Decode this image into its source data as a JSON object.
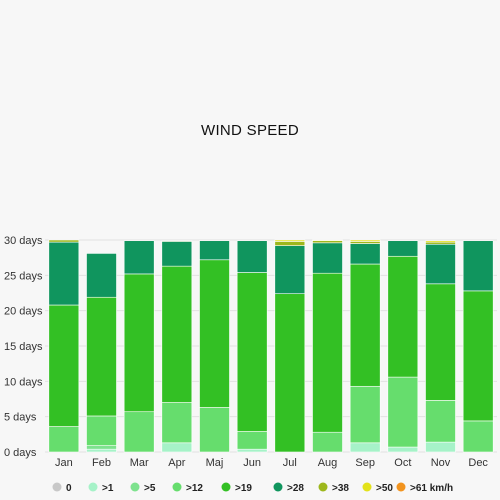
{
  "chart_data": {
    "type": "bar",
    "stacked": true,
    "title": "WIND SPEED",
    "xlabel": "",
    "ylabel": "",
    "y_unit": "days",
    "ylim": [
      0,
      30
    ],
    "yticks": [
      0,
      5,
      10,
      15,
      20,
      25,
      30
    ],
    "ytick_labels": [
      "0 days",
      "5 days",
      "10 days",
      "15 days",
      "20 days",
      "25 days",
      "30 days"
    ],
    "grid": true,
    "legend_position": "bottom",
    "categories": [
      "Jan",
      "Feb",
      "Mar",
      "Apr",
      "Maj",
      "Jun",
      "Jul",
      "Aug",
      "Sep",
      "Oct",
      "Nov",
      "Dec"
    ],
    "series": [
      {
        "name": "0",
        "color": "#c8c8c8",
        "values": [
          0,
          0,
          0,
          0,
          0,
          0,
          0,
          0,
          0,
          0,
          0,
          0
        ]
      },
      {
        "name": ">1",
        "color": "#a6f2c8",
        "values": [
          0,
          0.4,
          0,
          1.3,
          0,
          0.4,
          0,
          0,
          1.3,
          0.7,
          1.4,
          0
        ]
      },
      {
        "name": ">5",
        "color": "#7ee28e",
        "values": [
          0,
          0.5,
          0,
          0,
          0,
          0,
          0,
          0,
          0,
          0,
          0,
          0
        ]
      },
      {
        "name": ">12",
        "color": "#66dd6d",
        "values": [
          3.6,
          4.2,
          5.7,
          5.7,
          6.3,
          2.5,
          0,
          2.8,
          8.0,
          9.9,
          5.9,
          4.4
        ]
      },
      {
        "name": ">19",
        "color": "#33c024",
        "values": [
          17.2,
          16.8,
          19.5,
          19.3,
          20.9,
          22.5,
          22.4,
          22.5,
          17.3,
          17.1,
          16.5,
          18.4
        ]
      },
      {
        "name": ">28",
        "color": "#10955e",
        "values": [
          8.9,
          6.2,
          4.7,
          3.5,
          2.7,
          4.5,
          6.8,
          4.3,
          2.9,
          2.2,
          5.6,
          7.1
        ]
      },
      {
        "name": ">38",
        "color": "#9db71c",
        "values": [
          0.3,
          0,
          0,
          0.1,
          0,
          0,
          0.6,
          0.3,
          0.3,
          0,
          0.3,
          0
        ]
      },
      {
        "name": ">50",
        "color": "#e3e21a",
        "values": [
          0,
          0,
          0,
          0,
          0,
          0,
          0.2,
          0.1,
          0.2,
          0,
          0.2,
          0
        ]
      },
      {
        "name": ">61 km/h",
        "color": "#f2941f",
        "values": [
          0,
          0,
          0,
          0,
          0,
          0,
          0,
          0,
          0,
          0,
          0,
          0
        ]
      }
    ]
  }
}
